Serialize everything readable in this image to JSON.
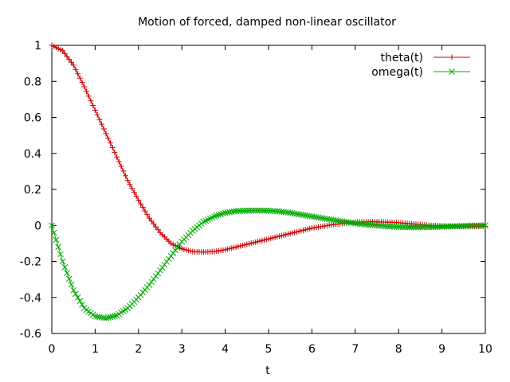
{
  "chart_data": {
    "type": "line",
    "title": "Motion of forced, damped non-linear oscillator",
    "xlabel": "t",
    "ylabel": "",
    "xlim": [
      0,
      10
    ],
    "ylim": [
      -0.6,
      1
    ],
    "x_ticks": [
      "0",
      "1",
      "2",
      "3",
      "4",
      "5",
      "6",
      "7",
      "8",
      "9",
      "10"
    ],
    "y_ticks": [
      "1",
      "0.8",
      "0.6",
      "0.4",
      "0.2",
      "0",
      "-0.2",
      "-0.4",
      "-0.6"
    ],
    "grid": false,
    "legend_position": "top-right",
    "x": [
      0.0,
      0.25,
      0.5,
      0.75,
      1.0,
      1.25,
      1.5,
      1.75,
      2.0,
      2.25,
      2.5,
      2.75,
      3.0,
      3.25,
      3.5,
      3.75,
      4.0,
      4.25,
      4.5,
      4.75,
      5.0,
      5.25,
      5.5,
      5.75,
      6.0,
      6.25,
      6.5,
      6.75,
      7.0,
      7.25,
      7.5,
      7.75,
      8.0,
      8.25,
      8.5,
      8.75,
      9.0,
      9.25,
      9.5,
      9.75,
      10.0
    ],
    "series": [
      {
        "name": "theta(t)",
        "color": "#cc0000",
        "marker": "plus",
        "values": [
          1.0,
          0.97,
          0.89,
          0.77,
          0.64,
          0.51,
          0.38,
          0.25,
          0.14,
          0.04,
          -0.04,
          -0.1,
          -0.13,
          -0.145,
          -0.148,
          -0.145,
          -0.135,
          -0.12,
          -0.105,
          -0.09,
          -0.075,
          -0.06,
          -0.045,
          -0.03,
          -0.015,
          -0.005,
          0.005,
          0.012,
          0.018,
          0.02,
          0.02,
          0.018,
          0.015,
          0.01,
          0.005,
          0.0,
          -0.003,
          -0.005,
          -0.006,
          -0.006,
          -0.005
        ]
      },
      {
        "name": "omega(t)",
        "color": "#00aa00",
        "marker": "x",
        "values": [
          0.0,
          -0.2,
          -0.36,
          -0.46,
          -0.505,
          -0.515,
          -0.5,
          -0.46,
          -0.4,
          -0.33,
          -0.25,
          -0.17,
          -0.09,
          -0.03,
          0.02,
          0.05,
          0.07,
          0.08,
          0.082,
          0.083,
          0.082,
          0.078,
          0.07,
          0.06,
          0.05,
          0.04,
          0.03,
          0.02,
          0.012,
          0.005,
          0.0,
          -0.005,
          -0.008,
          -0.01,
          -0.01,
          -0.009,
          -0.007,
          -0.005,
          -0.003,
          -0.001,
          0.0
        ]
      }
    ]
  }
}
